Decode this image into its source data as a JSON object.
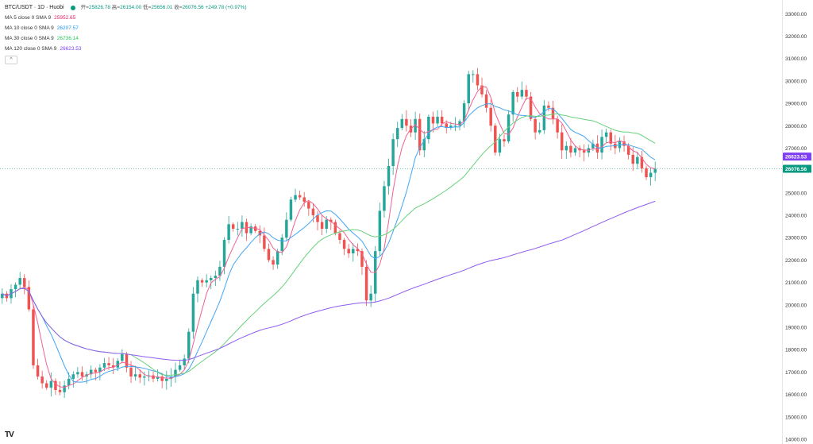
{
  "header": {
    "symbol": "BTC/USDT · 1D · Huobi",
    "open_label": "开=",
    "open_value": "25826.78",
    "high_label": "高=",
    "high_value": "26154.00",
    "low_label": "低=",
    "low_value": "25656.01",
    "close_label": "收=",
    "close_value": "26076.56",
    "change": "+249.78 (+0.97%)"
  },
  "moving_averages": [
    {
      "label": "MA 5 close 0 SMA 9",
      "value": "25952.65",
      "color": "#e91e63"
    },
    {
      "label": "MA 10 close 0 SMA 9",
      "value": "26207.57",
      "color": "#2196f3"
    },
    {
      "label": "MA 30 close 0 SMA 9",
      "value": "26736.14",
      "color": "#26c85a"
    },
    {
      "label": "MA 120 close 0 SMA 9",
      "value": "26623.53",
      "color": "#7e3ff2"
    }
  ],
  "collapse_glyph": "^",
  "logo_text": "TV",
  "colors": {
    "up": "#26a69a",
    "down": "#ef5350",
    "ma5": "#f06292",
    "ma10": "#42a5f5",
    "ma30": "#66d17a",
    "ma120": "#8e5cf0",
    "last_price": "#089981",
    "ma120_tag": "#7e3ff2"
  },
  "chart_data": {
    "type": "candlestick",
    "ylim": [
      14000,
      33400
    ],
    "y_ticks": [
      "33000.00",
      "32000.00",
      "31000.00",
      "30000.00",
      "29000.00",
      "28000.00",
      "27000.00",
      "26000.00",
      "25000.00",
      "24000.00",
      "23000.00",
      "22000.00",
      "21000.00",
      "20000.00",
      "19000.00",
      "18000.00",
      "17000.00",
      "16000.00",
      "15000.00",
      "14000.00"
    ],
    "last_price": "26076.56",
    "ma120_last": "26623.53",
    "close": [
      20500,
      20300,
      20700,
      20900,
      21200,
      20800,
      19800,
      17300,
      16800,
      16500,
      16300,
      16600,
      16200,
      16100,
      16400,
      16700,
      16900,
      17000,
      16800,
      16900,
      17100,
      17000,
      17200,
      17400,
      17300,
      17200,
      17500,
      17800,
      17200,
      16800,
      16900,
      16750,
      16800,
      16850,
      16700,
      16800,
      16600,
      16700,
      16800,
      17100,
      17300,
      17600,
      18800,
      20500,
      21100,
      21000,
      21100,
      21200,
      21300,
      21700,
      22900,
      23600,
      23400,
      23400,
      23700,
      23200,
      23500,
      23300,
      23100,
      22500,
      22000,
      21800,
      22400,
      23000,
      23800,
      24700,
      24900,
      24800,
      24600,
      24300,
      24000,
      23700,
      23400,
      23800,
      23700,
      23200,
      22900,
      22500,
      22300,
      22500,
      22400,
      21700,
      20200,
      20500,
      22400,
      24200,
      25300,
      26200,
      27400,
      27900,
      28300,
      28000,
      27700,
      28300,
      26900,
      27400,
      28400,
      28100,
      28400,
      28100,
      27900,
      28000,
      28000,
      28200,
      29000,
      30300,
      30300,
      29800,
      29400,
      28800,
      28000,
      26800,
      27400,
      27300,
      28500,
      29500,
      29300,
      29600,
      29300,
      28300,
      27700,
      27800,
      28900,
      28800,
      28300,
      27700,
      26900,
      27100,
      26800,
      27000,
      26900,
      26800,
      27000,
      27200,
      26800,
      27500,
      27700,
      27200,
      27000,
      27300,
      27100,
      26700,
      26300,
      26600,
      26100,
      25700,
      25900,
      26076
    ]
  }
}
